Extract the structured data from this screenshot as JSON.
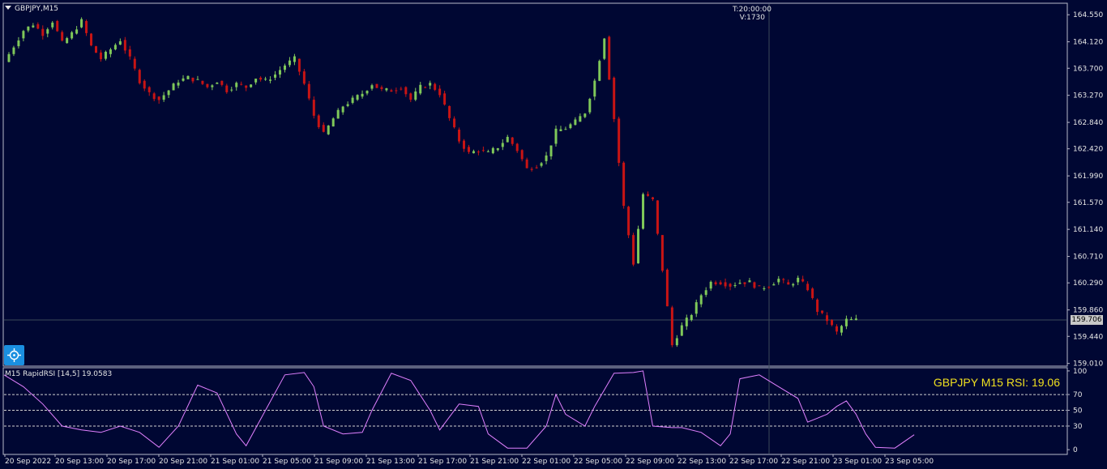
{
  "header": {
    "symbol_label": "GBPJPY,M15",
    "crosshair_time": "T:20:00:00",
    "crosshair_volume": "V:1730"
  },
  "indicator": {
    "label": "M15 RapidRSI [14,5] 19.0583",
    "overlay_text": "GBPJPY M15  RSI: 19.06"
  },
  "current_price_label": "159.706",
  "toolbar": {
    "target_icon": "crosshair-target-icon"
  },
  "colors": {
    "background": "#000733",
    "bull": "#7fc85a",
    "bear": "#c81414",
    "rsi_line": "#e080ff",
    "overlay_text": "#f0e020"
  },
  "chart_data": [
    {
      "type": "candlestick",
      "title": "",
      "y_ticks": [
        "164.550",
        "164.120",
        "163.700",
        "163.270",
        "162.840",
        "162.420",
        "161.990",
        "161.570",
        "161.140",
        "160.710",
        "160.290",
        "159.860",
        "159.440",
        "159.010"
      ],
      "ylim": [
        158.98,
        164.72
      ],
      "current_price": 159.706,
      "x_ticks": [
        "20 Sep 2022",
        "20 Sep 13:00",
        "20 Sep 17:00",
        "20 Sep 21:00",
        "21 Sep 01:00",
        "21 Sep 05:00",
        "21 Sep 09:00",
        "21 Sep 13:00",
        "21 Sep 17:00",
        "21 Sep 21:00",
        "22 Sep 01:00",
        "22 Sep 05:00",
        "22 Sep 09:00",
        "22 Sep 13:00",
        "22 Sep 17:00",
        "22 Sep 21:00",
        "23 Sep 01:00",
        "23 Sep 05:00"
      ],
      "close_path": [
        [
          0,
          163.8
        ],
        [
          2,
          164.05
        ],
        [
          4,
          164.3
        ],
        [
          6,
          164.4
        ],
        [
          8,
          164.25
        ],
        [
          10,
          164.45
        ],
        [
          12,
          164.1
        ],
        [
          14,
          164.25
        ],
        [
          16,
          164.45
        ],
        [
          18,
          164.05
        ],
        [
          20,
          163.85
        ],
        [
          22,
          164.0
        ],
        [
          24,
          164.15
        ],
        [
          26,
          163.85
        ],
        [
          28,
          163.5
        ],
        [
          30,
          163.3
        ],
        [
          32,
          163.2
        ],
        [
          34,
          163.35
        ],
        [
          36,
          163.5
        ],
        [
          38,
          163.55
        ],
        [
          40,
          163.5
        ],
        [
          42,
          163.4
        ],
        [
          44,
          163.5
        ],
        [
          46,
          163.35
        ],
        [
          48,
          163.45
        ],
        [
          50,
          163.4
        ],
        [
          52,
          163.55
        ],
        [
          54,
          163.5
        ],
        [
          56,
          163.6
        ],
        [
          58,
          163.75
        ],
        [
          60,
          163.85
        ],
        [
          62,
          163.45
        ],
        [
          64,
          162.95
        ],
        [
          66,
          162.65
        ],
        [
          68,
          162.9
        ],
        [
          70,
          163.1
        ],
        [
          72,
          163.2
        ],
        [
          74,
          163.3
        ],
        [
          76,
          163.45
        ],
        [
          78,
          163.35
        ],
        [
          80,
          163.35
        ],
        [
          82,
          163.4
        ],
        [
          84,
          163.2
        ],
        [
          86,
          163.4
        ],
        [
          88,
          163.45
        ],
        [
          90,
          163.3
        ],
        [
          92,
          162.9
        ],
        [
          94,
          162.55
        ],
        [
          96,
          162.35
        ],
        [
          98,
          162.4
        ],
        [
          100,
          162.35
        ],
        [
          102,
          162.45
        ],
        [
          104,
          162.6
        ],
        [
          106,
          162.4
        ],
        [
          108,
          162.1
        ],
        [
          110,
          162.15
        ],
        [
          112,
          162.3
        ],
        [
          114,
          162.7
        ],
        [
          116,
          162.75
        ],
        [
          118,
          162.85
        ],
        [
          120,
          163.0
        ],
        [
          122,
          163.5
        ],
        [
          124,
          164.2
        ],
        [
          126,
          162.9
        ],
        [
          128,
          161.5
        ],
        [
          130,
          160.6
        ],
        [
          132,
          161.7
        ],
        [
          134,
          161.6
        ],
        [
          136,
          160.5
        ],
        [
          138,
          159.3
        ],
        [
          140,
          159.6
        ],
        [
          142,
          159.8
        ],
        [
          144,
          160.1
        ],
        [
          146,
          160.3
        ],
        [
          148,
          160.3
        ],
        [
          150,
          160.25
        ],
        [
          152,
          160.3
        ],
        [
          154,
          160.3
        ],
        [
          156,
          160.2
        ],
        [
          158,
          160.25
        ],
        [
          160,
          160.35
        ],
        [
          162,
          160.25
        ],
        [
          164,
          160.35
        ],
        [
          166,
          160.2
        ],
        [
          168,
          159.85
        ],
        [
          170,
          159.7
        ],
        [
          172,
          159.5
        ],
        [
          174,
          159.7
        ],
        [
          176,
          159.7
        ]
      ]
    },
    {
      "type": "line",
      "title": "",
      "y_ticks": [
        "100",
        "70",
        "50",
        "30",
        "0"
      ],
      "ylim": [
        -5,
        103
      ],
      "levels": [
        70,
        50,
        30
      ],
      "series": [
        {
          "values": [
            [
              0,
              95
            ],
            [
              4,
              80
            ],
            [
              8,
              58
            ],
            [
              12,
              30
            ],
            [
              16,
              25
            ],
            [
              20,
              22
            ],
            [
              24,
              30
            ],
            [
              28,
              22
            ],
            [
              32,
              3
            ],
            [
              36,
              30
            ],
            [
              40,
              82
            ],
            [
              44,
              72
            ],
            [
              48,
              20
            ],
            [
              50,
              5
            ],
            [
              54,
              50
            ],
            [
              58,
              95
            ],
            [
              62,
              98
            ],
            [
              64,
              80
            ],
            [
              66,
              30
            ],
            [
              70,
              20
            ],
            [
              74,
              22
            ],
            [
              76,
              50
            ],
            [
              80,
              97
            ],
            [
              84,
              88
            ],
            [
              88,
              50
            ],
            [
              90,
              25
            ],
            [
              94,
              58
            ],
            [
              98,
              55
            ],
            [
              100,
              20
            ],
            [
              104,
              2
            ],
            [
              108,
              2
            ],
            [
              112,
              30
            ],
            [
              114,
              70
            ],
            [
              116,
              45
            ],
            [
              120,
              30
            ],
            [
              122,
              55
            ],
            [
              126,
              97
            ],
            [
              130,
              98
            ],
            [
              132,
              100
            ],
            [
              134,
              30
            ],
            [
              138,
              28
            ],
            [
              140,
              28
            ],
            [
              144,
              22
            ],
            [
              148,
              5
            ],
            [
              150,
              20
            ],
            [
              152,
              90
            ],
            [
              156,
              95
            ],
            [
              160,
              80
            ],
            [
              164,
              65
            ],
            [
              166,
              35
            ],
            [
              168,
              40
            ],
            [
              170,
              45
            ],
            [
              172,
              55
            ],
            [
              174,
              62
            ],
            [
              176,
              45
            ],
            [
              178,
              20
            ],
            [
              180,
              3
            ],
            [
              184,
              2
            ],
            [
              188,
              19
            ]
          ]
        }
      ]
    }
  ]
}
